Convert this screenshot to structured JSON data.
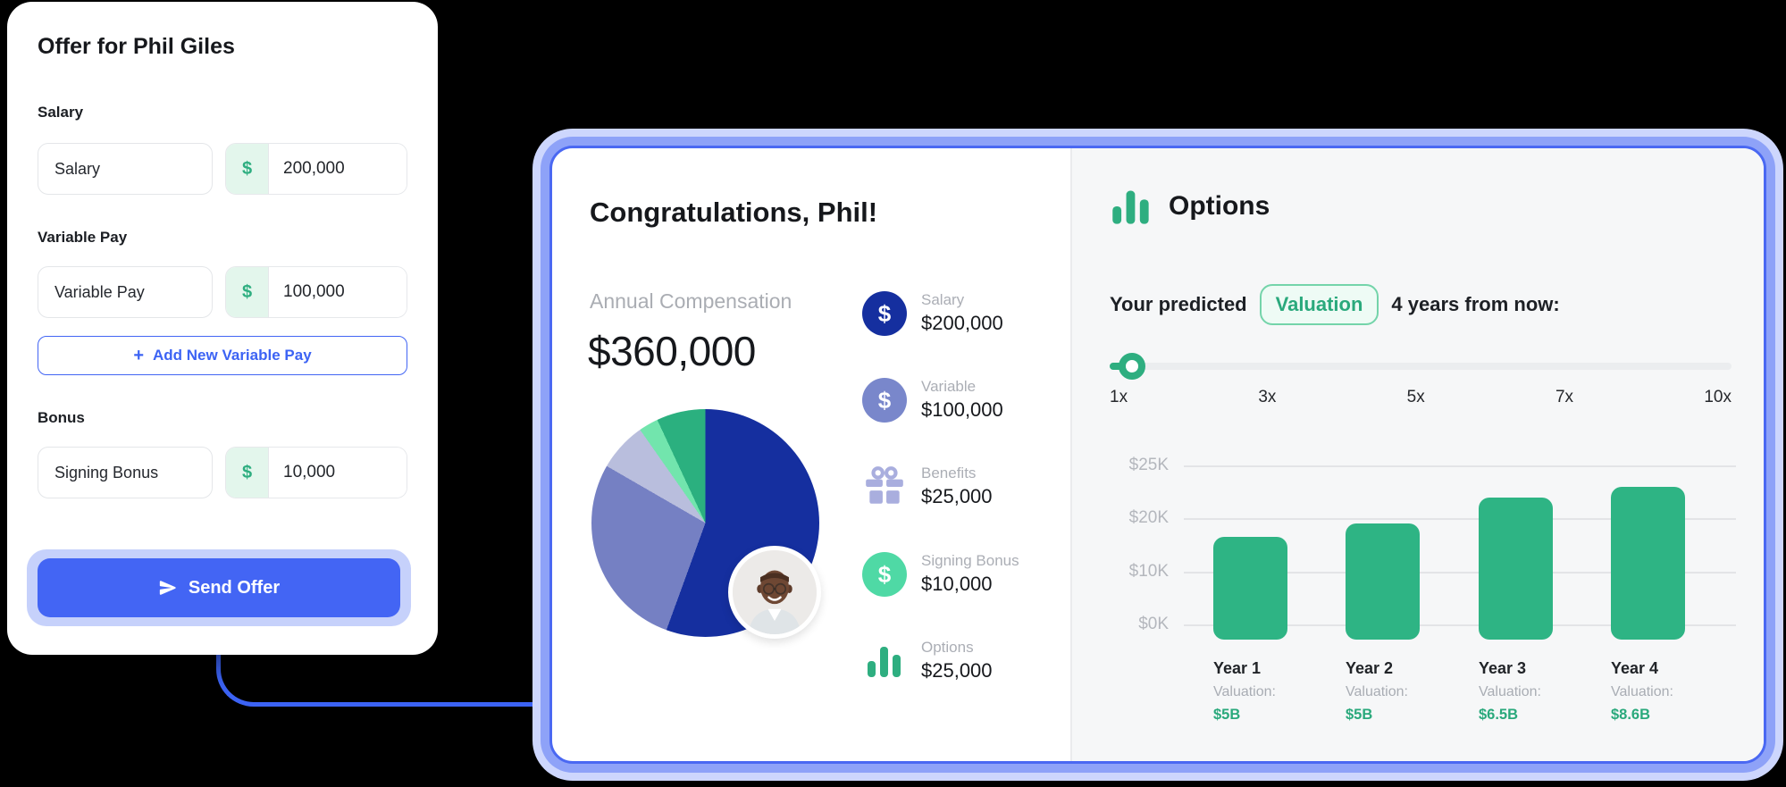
{
  "form": {
    "title": "Offer for Phil Giles",
    "salary": {
      "label": "Salary",
      "name_value": "Salary",
      "currency": "$",
      "amount": "200,000"
    },
    "variable": {
      "label": "Variable Pay",
      "name_value": "Variable Pay",
      "currency": "$",
      "amount": "100,000"
    },
    "bonus": {
      "label": "Bonus",
      "name_value": "Signing Bonus",
      "currency": "$",
      "amount": "10,000"
    },
    "add_button_label": "Add New Variable Pay",
    "add_button_plus": "+",
    "send_button_label": "Send Offer"
  },
  "card": {
    "congrats": {
      "heading": "Congratulations, Phil!",
      "annual_label": "Annual Compensation",
      "annual_value": "$360,000",
      "items": [
        {
          "label": "Salary",
          "value": "$200,000",
          "icon": "dollar-circle",
          "color": "#152f9f"
        },
        {
          "label": "Variable",
          "value": "$100,000",
          "icon": "dollar-circle",
          "color": "#7987cb"
        },
        {
          "label": "Benefits",
          "value": "$25,000",
          "icon": "gift",
          "color": "#a9aede"
        },
        {
          "label": "Signing Bonus",
          "value": "$10,000",
          "icon": "dollar-circle",
          "color": "#4fd9a5"
        },
        {
          "label": "Options",
          "value": "$25,000",
          "icon": "bar-chart",
          "color": "#2eae80"
        }
      ],
      "dollar_glyph": "$"
    },
    "options": {
      "heading": "Options",
      "predicted_prefix": "Your predicted",
      "pill_label": "Valuation",
      "predicted_suffix": "4 years from now:",
      "slider_ticks": [
        "1x",
        "3x",
        "5x",
        "7x",
        "10x"
      ],
      "slider_value": "1x"
    }
  },
  "chart_data": [
    {
      "type": "pie",
      "title": "Annual Compensation",
      "total": 360000,
      "slices": [
        {
          "label": "Salary",
          "value": 200000,
          "color": "#152f9f"
        },
        {
          "label": "Variable",
          "value": 100000,
          "color": "#7580c3"
        },
        {
          "label": "Benefits",
          "value": 25000,
          "color": "#b9bedd"
        },
        {
          "label": "Signing Bonus",
          "value": 10000,
          "color": "#72e5ad"
        },
        {
          "label": "Options",
          "value": 25000,
          "color": "#2bb07f"
        }
      ]
    },
    {
      "type": "bar",
      "title": "Options value by year",
      "categories": [
        "Year 1",
        "Year 2",
        "Year 3",
        "Year 4"
      ],
      "values_usd_k": [
        16.5,
        19,
        22,
        23
      ],
      "ylabel_ticks": [
        "$25K",
        "$20K",
        "$10K",
        "$0K"
      ],
      "ytick_values": [
        25,
        20,
        10,
        0
      ],
      "bar_color": "#2eb484",
      "grid": true,
      "footers": [
        {
          "label": "Year 1",
          "sub": "Valuation:",
          "valuation": "$5B"
        },
        {
          "label": "Year 2",
          "sub": "Valuation:",
          "valuation": "$5B"
        },
        {
          "label": "Year 3",
          "sub": "Valuation:",
          "valuation": "$6.5B"
        },
        {
          "label": "Year 4",
          "sub": "Valuation:",
          "valuation": "$8.6B"
        }
      ]
    }
  ],
  "colors": {
    "primary_blue": "#4365f4",
    "connector_blue": "#3c63f4",
    "accent_green": "#2eae80",
    "mint_bg": "#e3f6ec",
    "card_border": "#4a68f2",
    "card_ring_mid": "#8ea2f8",
    "card_ring_outer": "#cdd6fd",
    "muted_gray": "#a9adb4"
  }
}
